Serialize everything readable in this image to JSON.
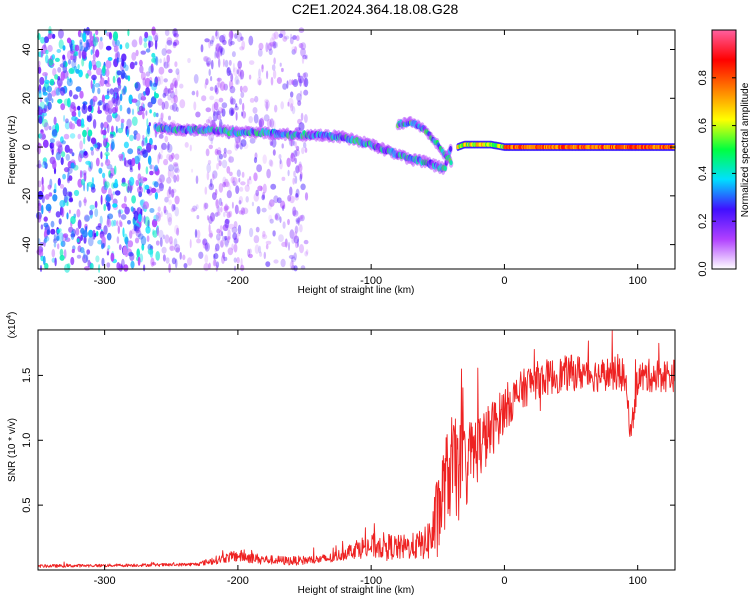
{
  "title": "C2E1.2024.364.18.08.G28",
  "chart_data": [
    {
      "type": "heatmap",
      "xlabel": "Height of straight line (km)",
      "ylabel": "Frequency (Hz)",
      "xlim": [
        -350,
        128
      ],
      "ylim": [
        -50,
        48
      ],
      "x_ticks": [
        -300,
        -200,
        -100,
        0,
        100
      ],
      "y_ticks": [
        -40,
        -20,
        0,
        20,
        40
      ],
      "x_tick_labels": [
        "-300",
        "-200",
        "-100",
        "0",
        "100"
      ],
      "y_tick_labels": [
        "-40",
        "-20",
        "0",
        "20",
        "40"
      ],
      "colorbar": {
        "label": "Normalized spectral amplitude",
        "range": [
          0,
          1
        ],
        "ticks": [
          0.0,
          0.2,
          0.4,
          0.6,
          0.8
        ],
        "tick_labels": [
          "0.0",
          "0.2",
          "0.4",
          "0.6",
          "0.8"
        ],
        "colormap": [
          "#ffffff",
          "#b040ff",
          "#4010ff",
          "#00e0ff",
          "#00ff40",
          "#ffff00",
          "#ff8000",
          "#ff0000",
          "#ff60a0"
        ]
      },
      "ridge": {
        "x": [
          -260,
          -240,
          -220,
          -200,
          -180,
          -160,
          -140,
          -120,
          -100,
          -90,
          -80,
          -70,
          -60,
          -50,
          -45,
          -40,
          -35,
          -30,
          -20,
          -10,
          0,
          20,
          50,
          80,
          110,
          128
        ],
        "y": [
          8,
          7,
          7,
          6,
          6,
          5,
          5,
          4,
          1,
          -1,
          -3,
          -5,
          -6,
          -8,
          -9,
          0,
          0,
          1,
          1,
          1,
          0,
          0,
          0,
          0,
          0,
          0
        ]
      },
      "branch": {
        "x": [
          -80,
          -75,
          -70,
          -65,
          -60,
          -55,
          -50,
          -45,
          -40
        ],
        "y": [
          9,
          10,
          10,
          9,
          7,
          4,
          1,
          -3,
          -6
        ]
      },
      "noise_region": [
        -350,
        -148
      ],
      "grid": false
    },
    {
      "type": "line",
      "xlabel": "Height of straight line (km)",
      "ylabel": "SNR (10 * v/v)",
      "y_multiplier": "(x10^4)",
      "xlim": [
        -350,
        128
      ],
      "ylim": [
        0,
        18500
      ],
      "x_ticks": [
        -300,
        -200,
        -100,
        0,
        100
      ],
      "y_ticks": [
        5000,
        10000,
        15000
      ],
      "x_tick_labels": [
        "-300",
        "-200",
        "-100",
        "0",
        "100"
      ],
      "y_tick_labels": [
        "0.5",
        "1.0",
        "1.5"
      ],
      "series": [
        {
          "color": "#ee2222",
          "x": [
            -350,
            -300,
            -250,
            -230,
            -220,
            -210,
            -200,
            -180,
            -160,
            -140,
            -130,
            -120,
            -110,
            -100,
            -90,
            -80,
            -70,
            -60,
            -55,
            -50,
            -45,
            -40,
            -35,
            -30,
            -25,
            -20,
            -15,
            -10,
            -5,
            0,
            5,
            10,
            20,
            30,
            40,
            50,
            60,
            70,
            80,
            90,
            95,
            100,
            110,
            120,
            128
          ],
          "y": [
            300,
            350,
            400,
            450,
            700,
            900,
            1100,
            800,
            700,
            800,
            900,
            1300,
            1700,
            1800,
            1900,
            1700,
            1800,
            2000,
            2600,
            4000,
            6500,
            8000,
            7500,
            7800,
            8800,
            9500,
            10000,
            10800,
            11500,
            12500,
            13000,
            13500,
            14500,
            14800,
            15000,
            15200,
            15200,
            15000,
            15200,
            15000,
            10500,
            14800,
            15000,
            15000,
            15000
          ],
          "noise_amplitude": [
            120,
            120,
            120,
            130,
            300,
            350,
            500,
            350,
            350,
            350,
            400,
            500,
            800,
            1000,
            1000,
            1000,
            1000,
            1200,
            2000,
            3500,
            3500,
            4000,
            4000,
            3500,
            3000,
            2800,
            2500,
            2200,
            2000,
            1800,
            1700,
            1600,
            1500,
            1400,
            1400,
            1400,
            1400,
            1300,
            1300,
            1300,
            1000,
            1300,
            1300,
            1300,
            1300
          ]
        }
      ],
      "grid": false
    }
  ]
}
